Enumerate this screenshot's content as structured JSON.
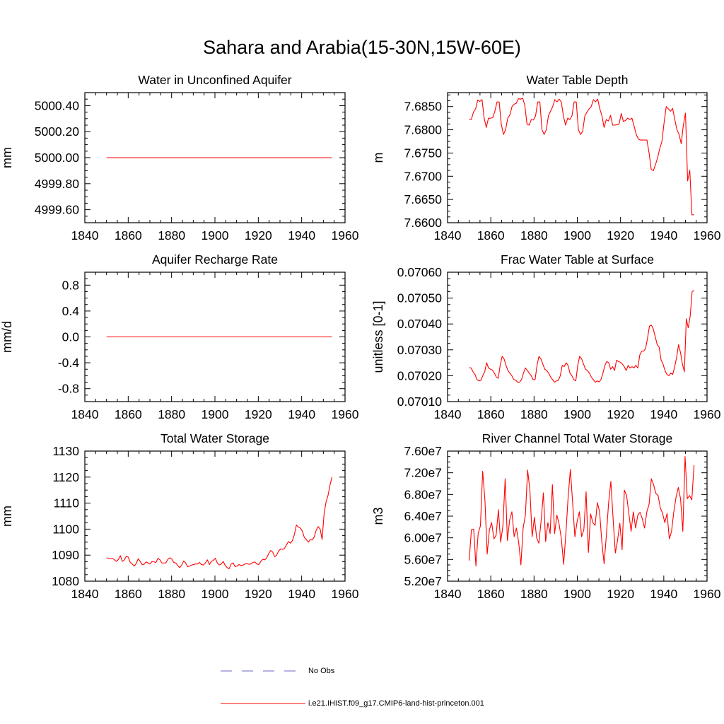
{
  "figure": {
    "title": "Sahara and Arabia(15-30N,15W-60E)",
    "line_color": "#ff0000",
    "obs_color": "#6a6ac8"
  },
  "legend": {
    "entries": [
      {
        "label": "No Obs",
        "style": "dashed",
        "color": "#6a6ac8"
      },
      {
        "label": "i.e21.IHIST.f09_g17.CMIP6-land-hist-princeton.001",
        "style": "solid",
        "color": "#ff0000"
      }
    ]
  },
  "chart_data": [
    {
      "type": "line",
      "title": "Water in Unconfined Aquifer",
      "xlabel": "",
      "ylabel": "mm",
      "xlim": [
        1840,
        1960
      ],
      "ylim": [
        4999.5,
        5000.5
      ],
      "xticks": [
        1840,
        1860,
        1880,
        1900,
        1920,
        1940,
        1960
      ],
      "xtick_labels": [
        "1840",
        "1860",
        "1880",
        "1900",
        "1920",
        "1940",
        "1960"
      ],
      "yticks": [
        4999.6,
        4999.8,
        5000.0,
        5000.2,
        5000.4
      ],
      "ytick_labels": [
        "4999.60",
        "4999.80",
        "5000.00",
        "5000.20",
        "5000.40"
      ],
      "x_start": 1850,
      "series": [
        {
          "values": [
            5000.0,
            5000.0
          ]
        }
      ],
      "x_end": 1954
    },
    {
      "type": "line",
      "title": "Water Table Depth",
      "xlabel": "",
      "ylabel": "m",
      "xlim": [
        1840,
        1960
      ],
      "ylim": [
        7.66,
        7.688
      ],
      "xticks": [
        1840,
        1860,
        1880,
        1900,
        1920,
        1940,
        1960
      ],
      "xtick_labels": [
        "1840",
        "1860",
        "1880",
        "1900",
        "1920",
        "1940",
        "1960"
      ],
      "yticks": [
        7.66,
        7.665,
        7.67,
        7.675,
        7.68,
        7.685
      ],
      "ytick_labels": [
        "7.6600",
        "7.6650",
        "7.6700",
        "7.6750",
        "7.6800",
        "7.6850"
      ],
      "x_start": 1850,
      "series": [
        {
          "values": [
            7.6823,
            7.6822,
            7.6838,
            7.6845,
            7.6864,
            7.6861,
            7.6865,
            7.6825,
            7.6805,
            7.6825,
            7.6825,
            7.6826,
            7.684,
            7.686,
            7.686,
            7.6812,
            7.679,
            7.68,
            7.6825,
            7.6832,
            7.685,
            7.6855,
            7.6857,
            7.6867,
            7.6866,
            7.6868,
            7.6852,
            7.6812,
            7.681,
            7.6822,
            7.6821,
            7.683,
            7.686,
            7.686,
            7.68,
            7.679,
            7.68,
            7.683,
            7.684,
            7.685,
            7.6865,
            7.686,
            7.6866,
            7.686,
            7.683,
            7.681,
            7.6825,
            7.6822,
            7.683,
            7.686,
            7.686,
            7.68,
            7.679,
            7.6797,
            7.683,
            7.6838,
            7.6845,
            7.685,
            7.6865,
            7.686,
            7.6866,
            7.6845,
            7.683,
            7.6805,
            7.6822,
            7.6819,
            7.6831,
            7.681,
            7.681,
            7.6811,
            7.6812,
            7.6835,
            7.6818,
            7.682,
            7.6825,
            7.6822,
            7.6825,
            7.6808,
            7.679,
            7.678,
            7.6778,
            7.6778,
            7.6778,
            7.6778,
            7.675,
            7.6715,
            7.6712,
            7.6725,
            7.674,
            7.676,
            7.6775,
            7.6815,
            7.685,
            7.6845,
            7.684,
            7.6846,
            7.6822,
            7.68,
            7.679,
            7.677,
            7.681,
            7.6836,
            7.669,
            7.6713,
            7.6617,
            7.6617
          ]
        }
      ],
      "x_end": 1954
    },
    {
      "type": "line",
      "title": "Aquifer Recharge Rate",
      "xlabel": "",
      "ylabel": "mm/d",
      "xlim": [
        1840,
        1960
      ],
      "ylim": [
        -1.0,
        1.0
      ],
      "xticks": [
        1840,
        1860,
        1880,
        1900,
        1920,
        1940,
        1960
      ],
      "xtick_labels": [
        "1840",
        "1860",
        "1880",
        "1900",
        "1920",
        "1940",
        "1960"
      ],
      "yticks": [
        -0.8,
        -0.4,
        0.0,
        0.4,
        0.8
      ],
      "ytick_labels": [
        "-0.8",
        "-0.4",
        "0.0",
        "0.4",
        "0.8"
      ],
      "x_start": 1850,
      "series": [
        {
          "values": [
            0.0,
            0.0
          ]
        }
      ],
      "x_end": 1954
    },
    {
      "type": "line",
      "title": "Frac Water Table at Surface",
      "xlabel": "",
      "ylabel": "unitless [0-1]",
      "xlim": [
        1840,
        1960
      ],
      "ylim": [
        0.0701,
        0.0706
      ],
      "xticks": [
        1840,
        1860,
        1880,
        1900,
        1920,
        1940,
        1960
      ],
      "xtick_labels": [
        "1840",
        "1860",
        "1880",
        "1900",
        "1920",
        "1940",
        "1960"
      ],
      "yticks": [
        0.0701,
        0.0702,
        0.0703,
        0.0704,
        0.0705,
        0.0706
      ],
      "ytick_labels": [
        "0.07010",
        "0.07020",
        "0.07030",
        "0.07040",
        "0.07050",
        "0.07060"
      ],
      "x_start": 1850,
      "series": [
        {
          "values": [
            0.070231,
            0.07023,
            0.070215,
            0.070205,
            0.070185,
            0.07018,
            0.070182,
            0.0702,
            0.070215,
            0.07025,
            0.07023,
            0.070225,
            0.070222,
            0.07021,
            0.070195,
            0.07019,
            0.07024,
            0.070275,
            0.070265,
            0.07024,
            0.07022,
            0.07021,
            0.0702,
            0.070185,
            0.070183,
            0.070175,
            0.070175,
            0.070185,
            0.07021,
            0.07023,
            0.07022,
            0.07021,
            0.0702,
            0.070185,
            0.070185,
            0.07024,
            0.070275,
            0.070265,
            0.070245,
            0.070225,
            0.07022,
            0.07021,
            0.070195,
            0.070185,
            0.070175,
            0.07018,
            0.070182,
            0.0702,
            0.07024,
            0.070235,
            0.07025,
            0.07024,
            0.07021,
            0.0702,
            0.070185,
            0.07018,
            0.07024,
            0.070275,
            0.070265,
            0.070245,
            0.070225,
            0.07022,
            0.07021,
            0.070195,
            0.070185,
            0.070175,
            0.07018,
            0.070176,
            0.070185,
            0.07021,
            0.07024,
            0.070255,
            0.07025,
            0.070225,
            0.070235,
            0.07022,
            0.07026,
            0.070255,
            0.070252,
            0.070245,
            0.070235,
            0.07022,
            0.07024,
            0.07023,
            0.070235,
            0.07023,
            0.07024,
            0.07023,
            0.07028,
            0.070295,
            0.070295,
            0.070305,
            0.070345,
            0.070392,
            0.070395,
            0.07038,
            0.07035,
            0.07032,
            0.07031,
            0.07026,
            0.070245,
            0.07022,
            0.070205,
            0.0702,
            0.07021,
            0.070205,
            0.070235,
            0.07027,
            0.07032,
            0.07029,
            0.070245,
            0.070215,
            0.07042,
            0.070385,
            0.07043,
            0.070525,
            0.07053
          ]
        }
      ],
      "x_end": 1954
    },
    {
      "type": "line",
      "title": "Total Water Storage",
      "xlabel": "",
      "ylabel": "mm",
      "xlim": [
        1840,
        1960
      ],
      "ylim": [
        1080,
        1130
      ],
      "xticks": [
        1840,
        1860,
        1880,
        1900,
        1920,
        1940,
        1960
      ],
      "xtick_labels": [
        "1840",
        "1860",
        "1880",
        "1900",
        "1920",
        "1940",
        "1960"
      ],
      "yticks": [
        1080,
        1090,
        1100,
        1110,
        1120,
        1130
      ],
      "ytick_labels": [
        "1080",
        "1090",
        "1100",
        "1110",
        "1120",
        "1130"
      ],
      "x_start": 1850,
      "series": [
        {
          "values": [
            1089.0,
            1088.8,
            1088.6,
            1088.8,
            1088.2,
            1087.6,
            1088.4,
            1089.8,
            1087.6,
            1088.2,
            1089.6,
            1089.2,
            1087.2,
            1086.6,
            1085.8,
            1086.8,
            1088.6,
            1087.6,
            1086.4,
            1086.5,
            1087.4,
            1087.0,
            1086.6,
            1087.6,
            1087.4,
            1087.2,
            1088.8,
            1088.2,
            1087.0,
            1087.0,
            1087.0,
            1088.4,
            1089.0,
            1088.5,
            1087.2,
            1087.0,
            1086.0,
            1085.2,
            1086.2,
            1087.8,
            1087.0,
            1085.6,
            1085.8,
            1086.2,
            1086.4,
            1086.6,
            1086.6,
            1087.2,
            1086.4,
            1086.2,
            1087.0,
            1088.2,
            1086.4,
            1087.6,
            1088.0,
            1088.8,
            1087.0,
            1086.2,
            1086.6,
            1087.6,
            1086.0,
            1085.2,
            1084.8,
            1086.6,
            1087.0,
            1085.6,
            1085.8,
            1086.4,
            1086.0,
            1086.2,
            1086.6,
            1086.8,
            1086.5,
            1086.6,
            1087.2,
            1087.4,
            1086.6,
            1086.4,
            1087.6,
            1088.4,
            1088.2,
            1089.0,
            1090.6,
            1091.8,
            1091.2,
            1089.4,
            1090.0,
            1091.6,
            1092.4,
            1092.2,
            1092.6,
            1094.0,
            1095.2,
            1094.6,
            1095.6,
            1098.0,
            1101.6,
            1100.8,
            1100.4,
            1099.2,
            1096.8,
            1096.0,
            1095.0,
            1096.0,
            1095.8,
            1097.0,
            1099.6,
            1101.0,
            1100.0,
            1096.0,
            1106.0,
            1110.5,
            1113.0,
            1117.0,
            1120.0
          ]
        }
      ],
      "x_end": 1954
    },
    {
      "type": "line",
      "title": "River Channel Total Water Storage",
      "xlabel": "",
      "ylabel": "m3",
      "xlim": [
        1840,
        1960
      ],
      "ylim": [
        52000000,
        76000000
      ],
      "xticks": [
        1840,
        1860,
        1880,
        1900,
        1920,
        1940,
        1960
      ],
      "xtick_labels": [
        "1840",
        "1860",
        "1880",
        "1900",
        "1920",
        "1940",
        "1960"
      ],
      "yticks": [
        52000000,
        56000000,
        60000000,
        64000000,
        68000000,
        72000000,
        76000000
      ],
      "ytick_labels": [
        "5.20e7",
        "5.60e7",
        "6.00e7",
        "6.40e7",
        "6.80e7",
        "7.20e7",
        "7.60e7"
      ],
      "x_start": 1850,
      "series": [
        {
          "values": [
            55800000,
            61500000,
            61600000,
            54800000,
            60800000,
            62200000,
            72300000,
            67000000,
            57000000,
            61500000,
            62800000,
            59800000,
            60500000,
            65200000,
            59200000,
            62200000,
            70900000,
            59500000,
            63300000,
            64800000,
            60200000,
            61800000,
            59200000,
            55000000,
            61800000,
            64200000,
            72500000,
            68800000,
            60200000,
            63800000,
            60000000,
            59000000,
            63200000,
            68300000,
            59300000,
            62800000,
            60800000,
            69800000,
            60800000,
            64200000,
            62500000,
            59800000,
            55100000,
            60800000,
            67500000,
            72600000,
            66500000,
            60200000,
            63000000,
            64800000,
            60200000,
            61500000,
            68500000,
            57300000,
            64400000,
            62800000,
            62300000,
            66500000,
            64800000,
            59200000,
            55200000,
            60400000,
            66400000,
            70400000,
            63500000,
            57200000,
            59600000,
            62700000,
            57800000,
            68800000,
            67800000,
            64500000,
            61200000,
            64800000,
            61800000,
            64200000,
            64700000,
            63500000,
            61800000,
            64800000,
            66200000,
            70900000,
            69800000,
            68200000,
            67800000,
            65500000,
            64500000,
            62800000,
            64500000,
            59800000,
            61200000,
            64800000,
            67500000,
            69300000,
            67200000,
            61200000,
            75000000,
            67200000,
            67800000,
            67000000,
            73400000
          ]
        }
      ],
      "x_end": 1954
    }
  ]
}
